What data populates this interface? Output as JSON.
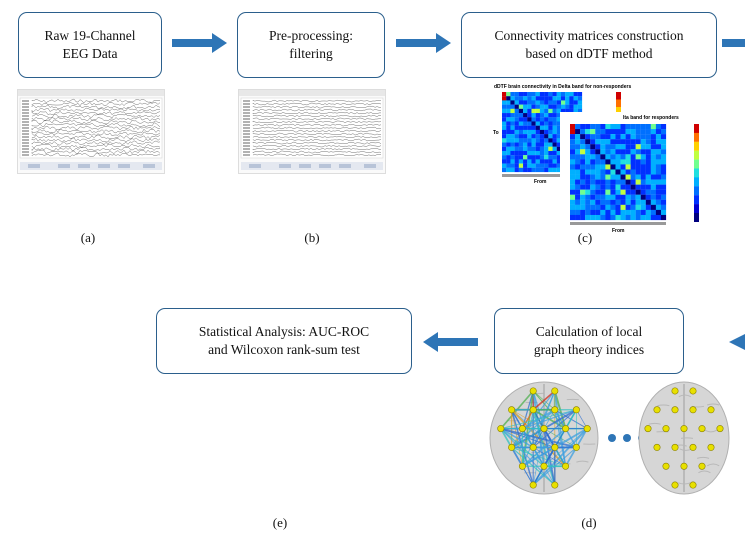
{
  "boxes": [
    {
      "id": "raw",
      "lines": [
        "Raw 19-Channel",
        "EEG Data"
      ]
    },
    {
      "id": "pre",
      "lines": [
        "Pre-processing:",
        "filtering"
      ]
    },
    {
      "id": "conn",
      "lines": [
        "Connectivity matrices construction",
        "based on dDTF method"
      ]
    },
    {
      "id": "graph",
      "lines": [
        "Calculation of local",
        "graph theory indices"
      ]
    },
    {
      "id": "stat",
      "lines": [
        "Statistical Analysis: AUC-ROC",
        "and Wilcoxon rank-sum test"
      ]
    }
  ],
  "captions": {
    "a": "(a)",
    "b": "(b)",
    "c": "(c)",
    "d": "(d)",
    "e": "(e)"
  },
  "matrix": {
    "title_back": "dDTF brain connectivity in Delta band for non-responders",
    "title_front": "lta band for responders",
    "axis_to": "To",
    "axis_from": "From"
  },
  "colors": {
    "arrow": "#2e75b6",
    "box_border": "#2b5f8c",
    "dots": "#2e75b6"
  }
}
